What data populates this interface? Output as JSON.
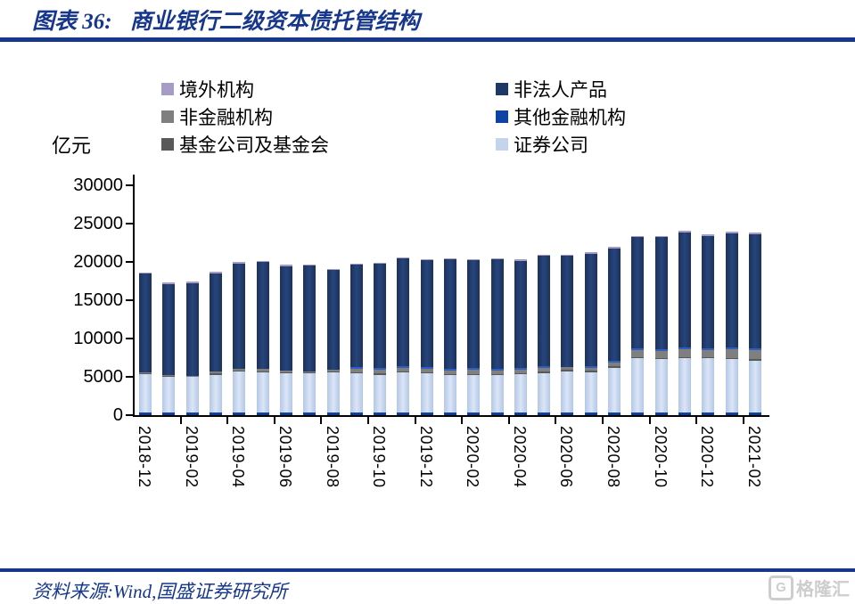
{
  "header": {
    "title_prefix": "图表 36:",
    "title_text": "商业银行二级资本债托管结构",
    "accent_color": "#17378C"
  },
  "footer": {
    "source_text": "资料来源:Wind,国盛证券研究所",
    "watermark_letter": "G",
    "watermark_text": "格隆汇"
  },
  "chart_data": {
    "type": "bar",
    "stacked": true,
    "title": "商业银行二级资本债托管结构",
    "unit_label": "亿元",
    "ylim": [
      0,
      30000
    ],
    "yticks": [
      0,
      5000,
      10000,
      15000,
      20000,
      25000,
      30000
    ],
    "grid": false,
    "legend_position": "top",
    "months": [
      "2018-12",
      "2019-01",
      "2019-02",
      "2019-03",
      "2019-04",
      "2019-05",
      "2019-06",
      "2019-07",
      "2019-08",
      "2019-09",
      "2019-10",
      "2019-11",
      "2019-12",
      "2020-01",
      "2020-02",
      "2020-03",
      "2020-04",
      "2020-05",
      "2020-06",
      "2020-07",
      "2020-08",
      "2020-09",
      "2020-10",
      "2020-11",
      "2020-12",
      "2021-01",
      "2021-02"
    ],
    "x_tick_labels": [
      "2018-12",
      "2019-02",
      "2019-04",
      "2019-06",
      "2019-08",
      "2019-10",
      "2019-12",
      "2020-02",
      "2020-04",
      "2020-06",
      "2020-08",
      "2020-10",
      "2020-12",
      "2021-02"
    ],
    "series": [
      {
        "key": "other_financial",
        "name": "其他金融机构",
        "color": "#0E42A3",
        "values": [
          400,
          400,
          400,
          400,
          400,
          400,
          400,
          400,
          400,
          400,
          400,
          400,
          400,
          400,
          400,
          400,
          400,
          400,
          400,
          400,
          400,
          400,
          400,
          400,
          400,
          400,
          400
        ]
      },
      {
        "key": "securities",
        "name": "证券公司",
        "color": "#C3D4EC",
        "values": [
          4950,
          4650,
          4550,
          4880,
          5280,
          5200,
          5030,
          5030,
          5180,
          5030,
          4880,
          5180,
          5030,
          4830,
          4830,
          4830,
          4950,
          5110,
          5340,
          5230,
          5810,
          7040,
          6890,
          7040,
          7000,
          6890,
          6740
        ]
      },
      {
        "key": "fund",
        "name": "基金公司及基金会",
        "color": "#595959",
        "values": [
          100,
          100,
          100,
          150,
          150,
          150,
          150,
          150,
          150,
          150,
          150,
          150,
          150,
          150,
          150,
          150,
          150,
          150,
          150,
          150,
          150,
          150,
          150,
          150,
          150,
          150,
          150
        ]
      },
      {
        "key": "non_financial",
        "name": "非金融机构",
        "color": "#7F7F7F",
        "values": [
          100,
          100,
          100,
          240,
          230,
          250,
          240,
          170,
          250,
          430,
          500,
          470,
          430,
          440,
          520,
          440,
          400,
          470,
          390,
          430,
          550,
          870,
          900,
          1020,
          950,
          1170,
          1160
        ]
      },
      {
        "key": "non_legal_person",
        "name": "非法人产品",
        "color": "#1F3864",
        "values": [
          12900,
          11900,
          12100,
          12880,
          13740,
          13950,
          13630,
          13750,
          12920,
          13410,
          13610,
          14000,
          14000,
          14260,
          14110,
          14260,
          14030,
          14420,
          14500,
          14650,
          14650,
          14520,
          14640,
          15030,
          14640,
          14910,
          14920
        ]
      },
      {
        "key": "overseas",
        "name": "境外机构",
        "color": "#A79CC8",
        "values": [
          150,
          150,
          150,
          150,
          150,
          150,
          150,
          150,
          150,
          150,
          150,
          150,
          150,
          150,
          150,
          150,
          150,
          150,
          150,
          150,
          150,
          200,
          200,
          200,
          200,
          200,
          200
        ]
      }
    ],
    "legend_columns": [
      [
        {
          "label": "境外机构",
          "color": "#A79CC8"
        },
        {
          "label": "非金融机构",
          "color": "#7F7F7F"
        },
        {
          "label": "基金公司及基金会",
          "color": "#595959"
        }
      ],
      [
        {
          "label": "非法人产品",
          "color": "#1F3864"
        },
        {
          "label": "其他金融机构",
          "color": "#0E42A3"
        },
        {
          "label": "证券公司",
          "color": "#C3D4EC"
        }
      ]
    ]
  }
}
